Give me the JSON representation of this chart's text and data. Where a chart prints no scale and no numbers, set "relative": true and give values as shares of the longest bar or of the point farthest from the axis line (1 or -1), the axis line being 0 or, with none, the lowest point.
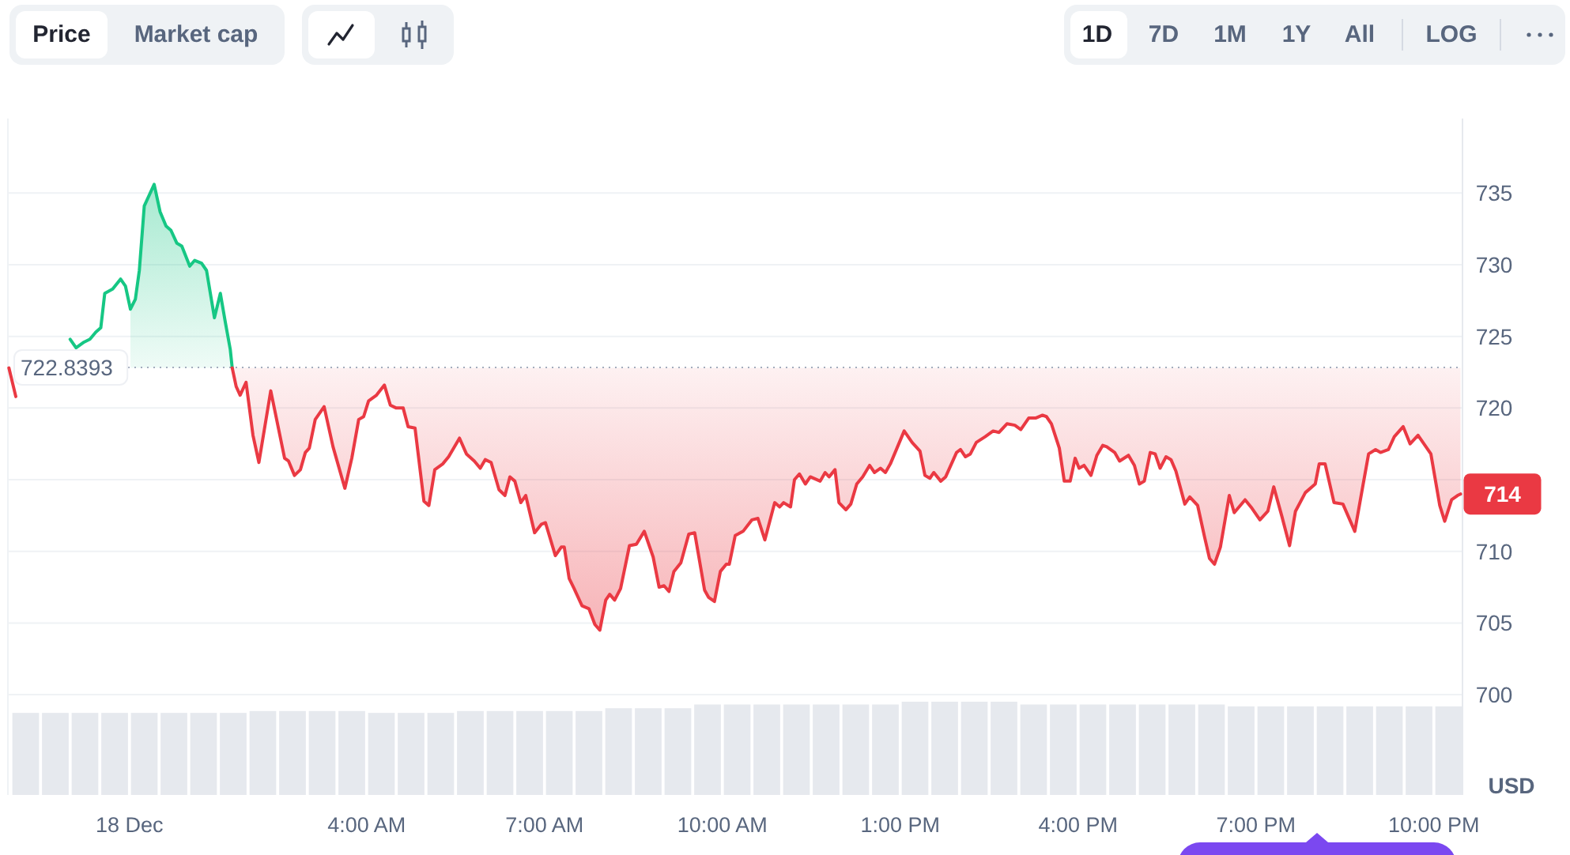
{
  "chart_data": [
    {
      "type": "line",
      "series": [
        {
          "color": "#16c784",
          "x": [
            "--12-17T23:00",
            "--12-17T23:06",
            "--12-17T23:14",
            "--12-17T23:20",
            "--12-17T23:26",
            "--12-17T23:31",
            "--12-17T23:35",
            "--12-17T23:43",
            "--12-17T23:51",
            "--12-17T23:56",
            "--12-18T00:01",
            "--12-18T00:06",
            "--12-18T00:10",
            "--12-18T00:15",
            "--12-18T00:25",
            "--12-18T00:31",
            "--12-18T00:37",
            "--12-18T00:42",
            "--12-18T00:48",
            "--12-18T00:53",
            "--12-18T01:01",
            "--12-18T01:06",
            "--12-18T01:13",
            "--12-18T01:18",
            "--12-18T01:26",
            "--12-18T01:32",
            "--12-18T01:37",
            "--12-18T01:42",
            "--12-18T01:44"
          ],
          "values": [
            724.8,
            724.2,
            724.6,
            724.8,
            725.3,
            725.6,
            728.0,
            728.3,
            729.0,
            728.5,
            726.9,
            727.6,
            729.6,
            734.1,
            735.6,
            733.7,
            732.7,
            732.4,
            731.5,
            731.3,
            729.9,
            730.3,
            730.1,
            729.6,
            726.3,
            728.0,
            726.0,
            724.1,
            722.8
          ],
          "lower": [
            null,
            null,
            null,
            null,
            null,
            null,
            null,
            null,
            null,
            null,
            722.8,
            722.8,
            722.8,
            722.8,
            722.8,
            722.8,
            722.8,
            722.8,
            722.8,
            722.8,
            722.8,
            722.8,
            722.8,
            722.8,
            722.8,
            722.8,
            722.8,
            722.8,
            722.8
          ],
          "upper": [
            null,
            null,
            null,
            null,
            null,
            null,
            null,
            null,
            null,
            null,
            726.9,
            727.6,
            729.6,
            734.1,
            735.6,
            733.7,
            732.7,
            732.4,
            731.5,
            731.3,
            729.9,
            730.3,
            730.1,
            729.6,
            726.3,
            728.0,
            726.0,
            724.1,
            722.8
          ]
        },
        {
          "color": "#ea3943",
          "x": [
            "--12-17T21:58",
            "--12-17T22:05",
            "--12-17T22:30",
            "--12-18T01:44",
            "--12-18T01:48",
            "--12-18T01:52",
            "--12-18T01:58",
            "--12-18T02:05",
            "--12-18T02:11",
            "--12-18T02:23",
            "--12-18T02:37",
            "--12-18T02:41",
            "--12-18T02:47",
            "--12-18T02:53",
            "--12-18T02:58",
            "--12-18T03:02",
            "--12-18T03:08",
            "--12-18T03:17",
            "--12-18T03:26",
            "--12-18T03:38",
            "--12-18T03:45",
            "--12-18T03:52",
            "--12-18T03:57",
            "--12-18T04:02",
            "--12-18T04:10",
            "--12-18T04:18",
            "--12-18T04:24",
            "--12-18T04:30",
            "--12-18T04:37",
            "--12-18T04:42",
            "--12-18T04:49",
            "--12-18T04:58",
            "--12-18T05:03",
            "--12-18T05:09",
            "--12-18T05:17",
            "--12-18T05:23",
            "--12-18T05:34",
            "--12-18T05:41",
            "--12-18T05:49",
            "--12-18T05:55",
            "--12-18T06:00",
            "--12-18T06:06",
            "--12-18T06:14",
            "--12-18T06:20",
            "--12-18T06:25",
            "--12-18T06:30",
            "--12-18T06:36",
            "--12-18T06:41",
            "--12-18T06:50",
            "--12-18T06:57",
            "--12-18T07:01",
            "--12-18T07:11",
            "--12-18T07:17",
            "--12-18T07:20",
            "--12-18T07:25",
            "--12-18T07:30",
            "--12-18T07:38",
            "--12-18T07:45",
            "--12-18T07:51",
            "--12-18T07:56",
            "--12-18T08:02",
            "--12-18T08:06",
            "--12-18T08:11",
            "--12-18T08:17",
            "--12-18T08:26",
            "--12-18T08:33",
            "--12-18T08:41",
            "--12-18T08:50",
            "--12-18T08:56",
            "--12-18T09:01",
            "--12-18T09:06",
            "--12-18T09:11",
            "--12-18T09:18",
            "--12-18T09:26",
            "--12-18T09:32",
            "--12-18T09:42",
            "--12-18T09:46",
            "--12-18T09:52",
            "--12-18T09:58",
            "--12-18T10:04",
            "--12-18T10:07",
            "--12-18T10:13",
            "--12-18T10:21",
            "--12-18T10:30",
            "--12-18T10:36",
            "--12-18T10:43",
            "--12-18T10:53",
            "--12-18T10:58",
            "--12-18T11:02",
            "--12-18T11:09",
            "--12-18T11:13",
            "--12-18T11:18",
            "--12-18T11:24",
            "--12-18T11:29",
            "--12-18T11:39",
            "--12-18T11:44",
            "--12-18T11:48",
            "--12-18T11:54",
            "--12-18T11:58",
            "--12-18T12:05",
            "--12-18T12:10",
            "--12-18T12:16",
            "--12-18T12:22",
            "--12-18T12:29",
            "--12-18T12:34",
            "--12-18T12:40",
            "--12-18T12:45",
            "--12-18T12:50",
            "--12-18T13:04",
            "--12-18T13:12",
            "--12-18T13:20",
            "--12-18T13:25",
            "--12-18T13:30",
            "--12-18T13:34",
            "--12-18T13:41",
            "--12-18T13:46",
            "--12-18T13:57",
            "--12-18T14:01",
            "--12-18T14:06",
            "--12-18T14:11",
            "--12-18T14:17",
            "--12-18T14:26",
            "--12-18T14:34",
            "--12-18T14:40",
            "--12-18T14:48",
            "--12-18T14:56",
            "--12-18T15:02",
            "--12-18T15:10",
            "--12-18T15:17",
            "--12-18T15:24",
            "--12-18T15:28",
            "--12-18T15:33",
            "--12-18T15:41",
            "--12-18T15:46",
            "--12-18T15:52",
            "--12-18T15:57",
            "--12-18T16:01",
            "--12-18T16:06",
            "--12-18T16:13",
            "--12-18T16:19",
            "--12-18T16:25",
            "--12-18T16:29",
            "--12-18T16:37",
            "--12-18T16:42",
            "--12-18T16:51",
            "--12-18T16:57",
            "--12-18T17:02",
            "--12-18T17:07",
            "--12-18T17:13",
            "--12-18T17:18",
            "--12-18T17:23",
            "--12-18T17:29",
            "--12-18T17:34",
            "--12-18T17:39",
            "--12-18T17:48",
            "--12-18T17:53",
            "--12-18T18:01",
            "--12-18T18:08",
            "--12-18T18:13",
            "--12-18T18:18",
            "--12-18T18:24",
            "--12-18T18:33",
            "--12-18T18:38",
            "--12-18T18:49",
            "--12-18T18:56",
            "--12-18T19:04",
            "--12-18T19:12",
            "--12-18T19:18",
            "--12-18T19:26",
            "--12-18T19:34",
            "--12-18T19:40",
            "--12-18T19:50",
            "--12-18T20:00",
            "--12-18T20:04",
            "--12-18T20:10",
            "--12-18T20:19",
            "--12-18T20:28",
            "--12-18T20:40",
            "--12-18T20:48",
            "--12-18T20:54",
            "--12-18T21:01",
            "--12-18T21:06",
            "--12-18T21:14",
            "--12-18T21:20",
            "--12-18T21:29",
            "--12-18T21:36",
            "--12-18T21:44",
            "--12-18T21:57",
            "--12-18T22:06",
            "--12-18T22:11",
            "--12-18T22:18",
            "--12-18T22:24",
            "--12-18T22:27"
          ],
          "values": [
            722.8,
            720.8,
            null,
            722.8,
            721.5,
            720.9,
            721.8,
            718.1,
            716.2,
            721.2,
            716.5,
            716.3,
            715.3,
            715.7,
            716.9,
            717.2,
            719.2,
            720.1,
            717.3,
            714.4,
            716.5,
            719.2,
            719.4,
            720.5,
            720.9,
            721.6,
            720.2,
            720.0,
            720.0,
            718.7,
            718.6,
            713.5,
            713.2,
            715.7,
            716.1,
            716.6,
            717.9,
            716.8,
            716.3,
            715.8,
            716.4,
            716.2,
            714.3,
            713.9,
            715.2,
            714.9,
            713.4,
            713.9,
            711.3,
            711.9,
            712.0,
            709.7,
            710.3,
            710.3,
            708.1,
            707.4,
            706.2,
            706.0,
            704.9,
            704.5,
            706.6,
            707.0,
            706.6,
            707.4,
            710.4,
            710.5,
            711.4,
            709.6,
            707.5,
            707.6,
            707.2,
            708.6,
            709.2,
            711.2,
            711.3,
            707.3,
            706.8,
            706.5,
            708.6,
            709.1,
            709.1,
            711.1,
            711.4,
            712.2,
            712.3,
            710.8,
            713.4,
            713.1,
            713.4,
            713.1,
            715.0,
            715.4,
            714.7,
            715.2,
            714.9,
            715.5,
            715.2,
            715.7,
            713.4,
            712.9,
            713.3,
            714.7,
            715.2,
            716.0,
            715.5,
            715.8,
            715.5,
            716.1,
            718.4,
            717.6,
            717.0,
            715.3,
            715.1,
            715.5,
            714.9,
            715.2,
            716.9,
            717.1,
            716.6,
            716.8,
            717.6,
            718.0,
            718.4,
            718.3,
            718.9,
            718.8,
            718.5,
            719.3,
            719.3,
            719.5,
            719.4,
            718.9,
            717.2,
            714.9,
            714.9,
            716.5,
            715.8,
            716.0,
            715.3,
            716.7,
            717.4,
            717.3,
            716.9,
            716.3,
            716.7,
            716.0,
            714.7,
            714.9,
            716.9,
            716.8,
            715.8,
            716.6,
            716.4,
            715.6,
            713.3,
            713.8,
            713.2,
            711.0,
            709.5,
            709.1,
            710.3,
            713.9,
            712.7,
            713.6,
            713.0,
            712.2,
            712.8,
            714.5,
            712.5,
            710.4,
            712.8,
            714.1,
            714.7,
            716.1,
            716.1,
            713.4,
            713.3,
            711.4,
            714.5,
            716.8,
            717.1,
            716.9,
            717.1,
            718.0,
            718.7,
            717.5,
            718.1,
            716.8,
            713.2,
            712.1,
            713.6,
            713.9,
            714.0
          ],
          "lower": [
            null,
            null,
            null,
            722.8,
            721.5,
            720.9,
            721.8,
            718.1,
            716.2,
            721.2,
            716.5,
            716.3,
            715.3,
            715.7,
            716.9,
            717.2,
            719.2,
            720.1,
            717.3,
            714.4,
            716.5,
            719.2,
            719.4,
            720.5,
            720.9,
            721.6,
            720.2,
            720.0,
            720.0,
            718.7,
            718.6,
            713.5,
            713.2,
            715.7,
            716.1,
            716.6,
            717.9,
            716.8,
            716.3,
            715.8,
            716.4,
            716.2,
            714.3,
            713.9,
            715.2,
            714.9,
            713.4,
            713.9,
            711.3,
            711.9,
            712.0,
            709.7,
            710.3,
            710.3,
            708.1,
            707.4,
            706.2,
            706.0,
            704.9,
            704.5,
            706.6,
            707.0,
            706.6,
            707.4,
            710.4,
            710.5,
            711.4,
            709.6,
            707.5,
            707.6,
            707.2,
            708.6,
            709.2,
            711.2,
            711.3,
            707.3,
            706.8,
            706.5,
            708.6,
            709.1,
            709.1,
            711.1,
            711.4,
            712.2,
            712.3,
            710.8,
            713.4,
            713.1,
            713.4,
            713.1,
            715.0,
            715.4,
            714.7,
            715.2,
            714.9,
            715.5,
            715.2,
            715.7,
            713.4,
            712.9,
            713.3,
            714.7,
            715.2,
            716.0,
            715.5,
            715.8,
            715.5,
            716.1,
            718.4,
            717.6,
            717.0,
            715.3,
            715.1,
            715.5,
            714.9,
            715.2,
            716.9,
            717.1,
            716.6,
            716.8,
            717.6,
            718.0,
            718.4,
            718.3,
            718.9,
            718.8,
            718.5,
            719.3,
            719.3,
            719.5,
            719.4,
            718.9,
            717.2,
            714.9,
            714.9,
            716.5,
            715.8,
            716.0,
            715.3,
            716.7,
            717.4,
            717.3,
            716.9,
            716.3,
            716.7,
            716.0,
            714.7,
            714.9,
            716.9,
            716.8,
            715.8,
            716.6,
            716.4,
            715.6,
            713.3,
            713.8,
            713.2,
            711.0,
            709.5,
            709.1,
            710.3,
            713.9,
            712.7,
            713.6,
            713.0,
            712.2,
            712.8,
            714.5,
            712.5,
            710.4,
            712.8,
            714.1,
            714.7,
            716.1,
            716.1,
            713.4,
            713.3,
            711.4,
            714.5,
            716.8,
            717.1,
            716.9,
            717.1,
            718.0,
            718.7,
            717.5,
            718.1,
            716.8,
            713.2,
            712.1,
            713.6,
            713.9,
            714.0
          ],
          "upper": [
            null,
            null,
            null,
            722.8,
            722.8,
            722.8,
            722.8,
            722.8,
            722.8,
            722.8,
            722.8,
            722.8,
            722.8,
            722.8,
            722.8,
            722.8,
            722.8,
            722.8,
            722.8,
            722.8,
            722.8,
            722.8,
            722.8,
            722.8,
            722.8,
            722.8,
            722.8,
            722.8,
            722.8,
            722.8,
            722.8,
            722.8,
            722.8,
            722.8,
            722.8,
            722.8,
            722.8,
            722.8,
            722.8,
            722.8,
            722.8,
            722.8,
            722.8,
            722.8,
            722.8,
            722.8,
            722.8,
            722.8,
            722.8,
            722.8,
            722.8,
            722.8,
            722.8,
            722.8,
            722.8,
            722.8,
            722.8,
            722.8,
            722.8,
            722.8,
            722.8,
            722.8,
            722.8,
            722.8,
            722.8,
            722.8,
            722.8,
            722.8,
            722.8,
            722.8,
            722.8,
            722.8,
            722.8,
            722.8,
            722.8,
            722.8,
            722.8,
            722.8,
            722.8,
            722.8,
            722.8,
            722.8,
            722.8,
            722.8,
            722.8,
            722.8,
            722.8,
            722.8,
            722.8,
            722.8,
            722.8,
            722.8,
            722.8,
            722.8,
            722.8,
            722.8,
            722.8,
            722.8,
            722.8,
            722.8,
            722.8,
            722.8,
            722.8,
            722.8,
            722.8,
            722.8,
            722.8,
            722.8,
            722.8,
            722.8,
            722.8,
            722.8,
            722.8,
            722.8,
            722.8,
            722.8,
            722.8,
            722.8,
            722.8,
            722.8,
            722.8,
            722.8,
            722.8,
            722.8,
            722.8,
            722.8,
            722.8,
            722.8,
            722.8,
            722.8,
            722.8,
            722.8,
            722.8,
            722.8,
            722.8,
            722.8,
            722.8,
            722.8,
            722.8,
            722.8,
            722.8,
            722.8,
            722.8,
            722.8,
            722.8,
            722.8,
            722.8,
            722.8,
            722.8,
            722.8,
            722.8,
            722.8,
            722.8,
            722.8,
            722.8,
            722.8,
            722.8,
            722.8,
            722.8,
            722.8,
            722.8,
            722.8,
            722.8,
            722.8,
            722.8,
            722.8,
            722.8,
            722.8,
            722.8,
            722.8,
            722.8,
            722.8,
            722.8,
            722.8,
            722.8,
            722.8,
            722.8,
            722.8,
            722.8,
            722.8,
            722.8,
            722.8,
            722.8,
            722.8,
            722.8,
            722.8,
            722.8,
            722.8,
            722.8,
            722.8,
            722.8,
            722.8,
            722.8
          ]
        }
      ],
      "xlim": [
        "--12-17T21:57",
        "--12-18T22:29"
      ],
      "ylim": [
        699.4,
        740.2
      ],
      "yticks": [
        700,
        705,
        710,
        {
          "value": 715,
          "label": null
        },
        720,
        725,
        730,
        735
      ],
      "ylabel": "USD",
      "grid": "y",
      "tick_labels": "y",
      "ref_lines": [
        {
          "axis": "y",
          "value": 722.8393,
          "label": "722.8393",
          "color": "#a3acbd",
          "line_style": "dotted"
        }
      ],
      "annotations": [
        "Price",
        "Market cap",
        "1D",
        "7D",
        "1M",
        "1Y",
        "All",
        "LOG",
        {
          "text": "714",
          "x": "--12-18T22:27",
          "y": 714
        }
      ]
    },
    {
      "type": "bar",
      "relative": true,
      "color": "#e6e9ee",
      "x": [
        "--12-17T22:15",
        "--12-17T22:45",
        "--12-17T23:15",
        "--12-17T23:45",
        "--12-18T00:15",
        "--12-18T00:45",
        "--12-18T01:15",
        "--12-18T01:45",
        "--12-18T02:15",
        "--12-18T02:45",
        "--12-18T03:15",
        "--12-18T03:45",
        "--12-18T04:15",
        "--12-18T04:45",
        "--12-18T05:15",
        "--12-18T05:45",
        "--12-18T06:15",
        "--12-18T06:45",
        "--12-18T07:15",
        "--12-18T07:45",
        "--12-18T08:15",
        "--12-18T08:45",
        "--12-18T09:15",
        "--12-18T09:45",
        "--12-18T10:15",
        "--12-18T10:45",
        "--12-18T11:15",
        "--12-18T11:45",
        "--12-18T12:15",
        "--12-18T12:45",
        "--12-18T13:15",
        "--12-18T13:45",
        "--12-18T14:15",
        "--12-18T14:45",
        "--12-18T15:15",
        "--12-18T15:45",
        "--12-18T16:15",
        "--12-18T16:45",
        "--12-18T17:15",
        "--12-18T17:45",
        "--12-18T18:15",
        "--12-18T18:45",
        "--12-18T19:15",
        "--12-18T19:45",
        "--12-18T20:15",
        "--12-18T20:45",
        "--12-18T21:15",
        "--12-18T21:45",
        "--12-18T22:15"
      ],
      "values": [
        0.88,
        0.88,
        0.88,
        0.88,
        0.88,
        0.88,
        0.88,
        0.88,
        0.9,
        0.9,
        0.9,
        0.9,
        0.88,
        0.88,
        0.88,
        0.9,
        0.9,
        0.9,
        0.9,
        0.9,
        0.93,
        0.93,
        0.93,
        0.97,
        0.97,
        0.97,
        0.97,
        0.97,
        0.97,
        0.97,
        1,
        1,
        1,
        1,
        0.97,
        0.97,
        0.97,
        0.97,
        0.97,
        0.97,
        0.97,
        0.95,
        0.95,
        0.95,
        0.95,
        0.95,
        0.95,
        0.95,
        0.95
      ],
      "xlim": [
        "--12-17T21:57",
        "--12-18T22:29"
      ],
      "xticks": [
        {
          "value": "--12-18T00:00",
          "label": "18 Dec"
        },
        {
          "value": "--12-18T04:00",
          "label": "4:00 AM"
        },
        {
          "value": "--12-18T07:00",
          "label": "7:00 AM"
        },
        {
          "value": "--12-18T10:00",
          "label": "10:00 AM"
        },
        {
          "value": "--12-18T13:00",
          "label": "1:00 PM"
        },
        {
          "value": "--12-18T16:00",
          "label": "4:00 PM"
        },
        {
          "value": "--12-18T19:00",
          "label": "7:00 PM"
        },
        {
          "value": "--12-18T22:00",
          "label": "10:00 PM"
        }
      ],
      "tick_labels": "x"
    }
  ]
}
